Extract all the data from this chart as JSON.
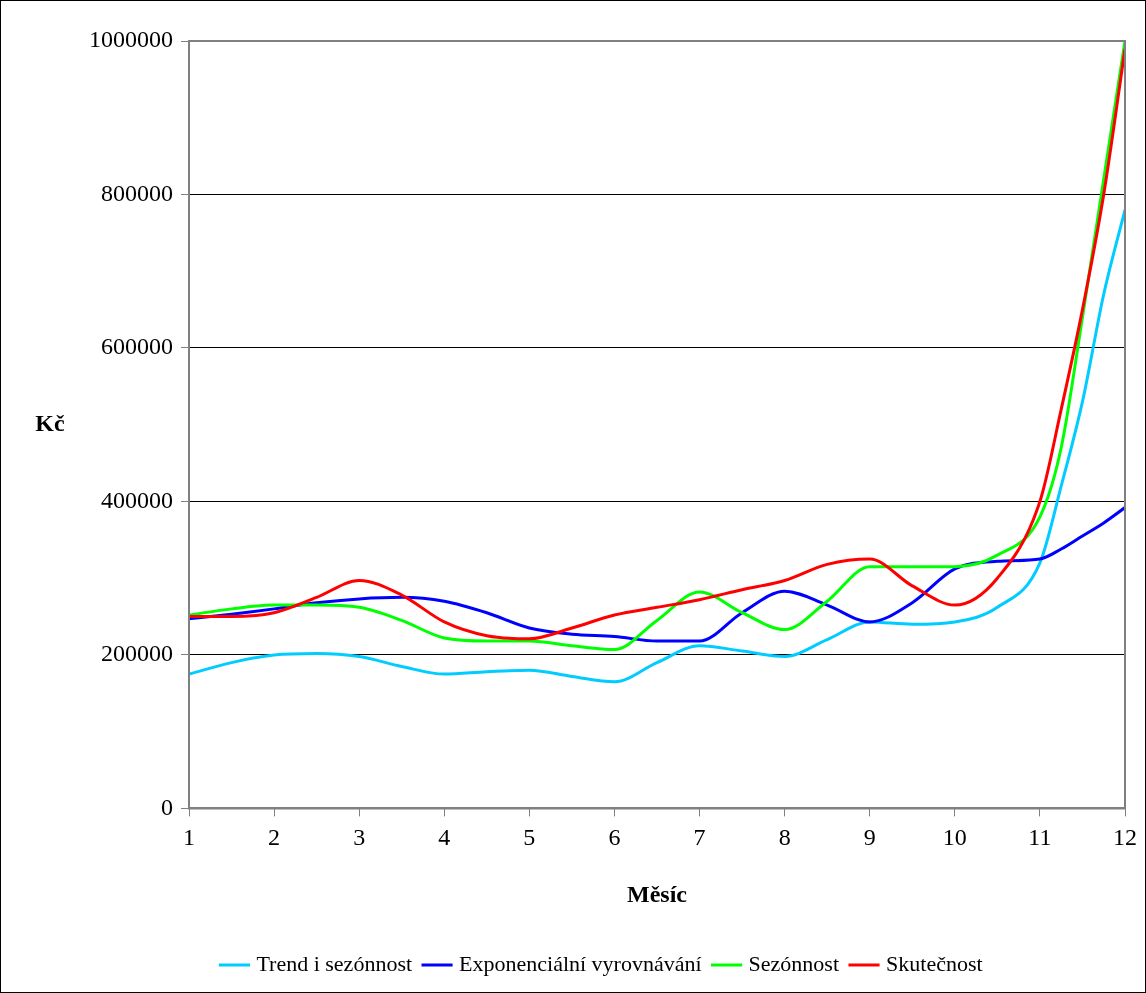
{
  "chart_data": {
    "type": "line",
    "xlabel": "Měsíc",
    "ylabel": "Kč",
    "x": [
      1,
      1.5,
      2,
      2.5,
      3,
      3.5,
      4,
      4.5,
      5,
      5.5,
      6,
      6.5,
      7,
      7.5,
      8,
      8.5,
      9,
      9.5,
      10,
      10.5,
      11,
      11.25,
      11.5,
      11.75,
      12
    ],
    "xlim": [
      1,
      12
    ],
    "xticks": [
      1,
      2,
      3,
      4,
      5,
      6,
      7,
      8,
      9,
      10,
      11,
      12
    ],
    "ylim": [
      0,
      1000000
    ],
    "yticks": [
      0,
      200000,
      400000,
      600000,
      800000,
      1000000
    ],
    "grid": "y",
    "legend": "bottom",
    "marker": "none",
    "line_style": "solid",
    "series": [
      {
        "name": "Trend i sezónnost",
        "color": "#00ccff",
        "values": [
          175000,
          190000,
          200000,
          202000,
          198000,
          185000,
          175000,
          178000,
          180000,
          172000,
          165000,
          190000,
          212000,
          205000,
          198000,
          220000,
          243000,
          240000,
          243000,
          262000,
          320000,
          420000,
          530000,
          670000,
          780000
        ]
      },
      {
        "name": "Exponenciální vyrovnávání",
        "color": "#0000ff",
        "values": [
          247000,
          253000,
          260000,
          268000,
          273000,
          275000,
          270000,
          255000,
          235000,
          227000,
          224000,
          218000,
          218000,
          255000,
          283000,
          265000,
          243000,
          268000,
          312000,
          322000,
          325000,
          338000,
          355000,
          372000,
          392000
        ]
      },
      {
        "name": "Sezónnost",
        "color": "#00ff00",
        "values": [
          252000,
          260000,
          265000,
          265000,
          262000,
          245000,
          222000,
          218000,
          218000,
          212000,
          207000,
          245000,
          282000,
          255000,
          233000,
          270000,
          315000,
          315000,
          315000,
          330000,
          380000,
          470000,
          640000,
          820000,
          1000000
        ]
      },
      {
        "name": "Skutečnost",
        "color": "#ff0000",
        "values": [
          250000,
          250000,
          255000,
          275000,
          297000,
          278000,
          243000,
          225000,
          221000,
          235000,
          252000,
          262000,
          272000,
          285000,
          297000,
          318000,
          325000,
          290000,
          265000,
          300000,
          400000,
          520000,
          650000,
          800000,
          990000
        ]
      }
    ]
  }
}
